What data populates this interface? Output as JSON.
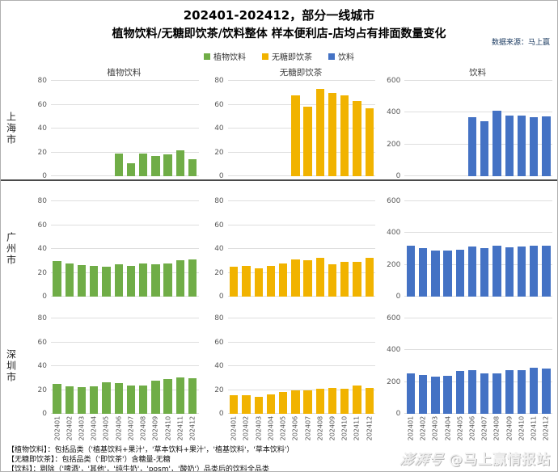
{
  "title": {
    "line1": "202401-202412，部分一线城市",
    "line2": "植物饮料/无糖即饮茶/饮料整体 样本便利店-店均占有排面数量变化"
  },
  "source": "数据来源：马上赢",
  "legend": [
    {
      "label": "植物饮料",
      "color": "#70AD47"
    },
    {
      "label": "无糖即饮茶",
      "color": "#F1B300"
    },
    {
      "label": "饮料",
      "color": "#4472C4"
    }
  ],
  "column_headers": [
    "植物饮料",
    "无糖即饮茶",
    "饮料"
  ],
  "rows": [
    {
      "city": "上海市"
    },
    {
      "city": "广州市"
    },
    {
      "city": "深圳市"
    }
  ],
  "months": [
    "202401",
    "202402",
    "202403",
    "202404",
    "202405",
    "202406",
    "202407",
    "202408",
    "202409",
    "202410",
    "202411",
    "202412"
  ],
  "chart_data": [
    {
      "id": 0,
      "type": "bar",
      "city": "上海市",
      "series": "植物饮料",
      "color": "#70AD47",
      "ymax": 80,
      "yticks": [
        0,
        20,
        40,
        60,
        80
      ],
      "values": [
        null,
        null,
        null,
        null,
        null,
        19,
        11,
        19,
        17,
        18.5,
        22,
        14
      ],
      "show_x_labels": false
    },
    {
      "id": 1,
      "type": "bar",
      "city": "上海市",
      "series": "无糖即饮茶",
      "color": "#F1B300",
      "ymax": 80,
      "yticks": [
        0,
        20,
        40,
        60,
        80
      ],
      "values": [
        null,
        null,
        null,
        null,
        null,
        68,
        58,
        73,
        70,
        68,
        63,
        57
      ],
      "show_x_labels": false
    },
    {
      "id": 2,
      "type": "bar",
      "city": "上海市",
      "series": "饮料",
      "color": "#4472C4",
      "ymax": 600,
      "yticks": [
        0,
        200,
        400,
        600
      ],
      "values": [
        null,
        null,
        null,
        null,
        null,
        370,
        348,
        410,
        383,
        380,
        370,
        375
      ],
      "show_x_labels": false
    },
    {
      "id": 3,
      "type": "bar",
      "city": "广州市",
      "series": "植物饮料",
      "color": "#70AD47",
      "ymax": 80,
      "yticks": [
        0,
        20,
        40,
        60,
        80
      ],
      "values": [
        30,
        28,
        26.5,
        26,
        25,
        27,
        26,
        27.5,
        27,
        28,
        30.5,
        31
      ],
      "show_x_labels": false
    },
    {
      "id": 4,
      "type": "bar",
      "city": "广州市",
      "series": "无糖即饮茶",
      "color": "#F1B300",
      "ymax": 80,
      "yticks": [
        0,
        20,
        40,
        60,
        80
      ],
      "values": [
        25,
        26,
        24,
        25.5,
        28,
        31,
        30.5,
        32.5,
        27,
        29,
        29.5,
        32.5
      ],
      "show_x_labels": false
    },
    {
      "id": 5,
      "type": "bar",
      "city": "广州市",
      "series": "饮料",
      "color": "#4472C4",
      "ymax": 600,
      "yticks": [
        0,
        200,
        400,
        600
      ],
      "values": [
        318,
        303,
        291,
        289,
        296,
        315,
        305,
        318,
        308,
        315,
        318,
        321
      ],
      "show_x_labels": false
    },
    {
      "id": 6,
      "type": "bar",
      "city": "深圳市",
      "series": "植物饮料",
      "color": "#70AD47",
      "ymax": 80,
      "yticks": [
        0,
        20,
        40,
        60,
        80
      ],
      "values": [
        25,
        23,
        22.5,
        23,
        26.5,
        26,
        23.5,
        23.5,
        27.5,
        29,
        30.5,
        30
      ],
      "show_x_labels": true
    },
    {
      "id": 7,
      "type": "bar",
      "city": "深圳市",
      "series": "无糖即饮茶",
      "color": "#F1B300",
      "ymax": 80,
      "yticks": [
        0,
        20,
        40,
        60,
        80
      ],
      "values": [
        15.5,
        15.5,
        14.5,
        16.5,
        18.5,
        20,
        19.5,
        21,
        21.5,
        21,
        23.5,
        22
      ],
      "show_x_labels": true
    },
    {
      "id": 8,
      "type": "bar",
      "city": "深圳市",
      "series": "饮料",
      "color": "#4472C4",
      "ymax": 600,
      "yticks": [
        0,
        200,
        400,
        600
      ],
      "values": [
        255,
        245,
        232,
        241,
        272,
        275,
        255,
        255,
        276,
        275,
        290,
        287
      ],
      "show_x_labels": true
    }
  ],
  "footnotes": [
    "【植物饮料】：包括品类（'植基饮料+果汁'，'草本饮料+果汁'，'植基饮料'，'草本饮料'）",
    "【无糖即饮茶】：包括品类（'即饮茶'）含糖量-无糖",
    "【饮料】：剔除（'啤酒'，'其他'，'纯牛奶'，'posm'，'酸奶'）品类后的饮料全品类"
  ],
  "watermark": {
    "logo": "澎湃号",
    "handle": "@马上赢情报站"
  }
}
